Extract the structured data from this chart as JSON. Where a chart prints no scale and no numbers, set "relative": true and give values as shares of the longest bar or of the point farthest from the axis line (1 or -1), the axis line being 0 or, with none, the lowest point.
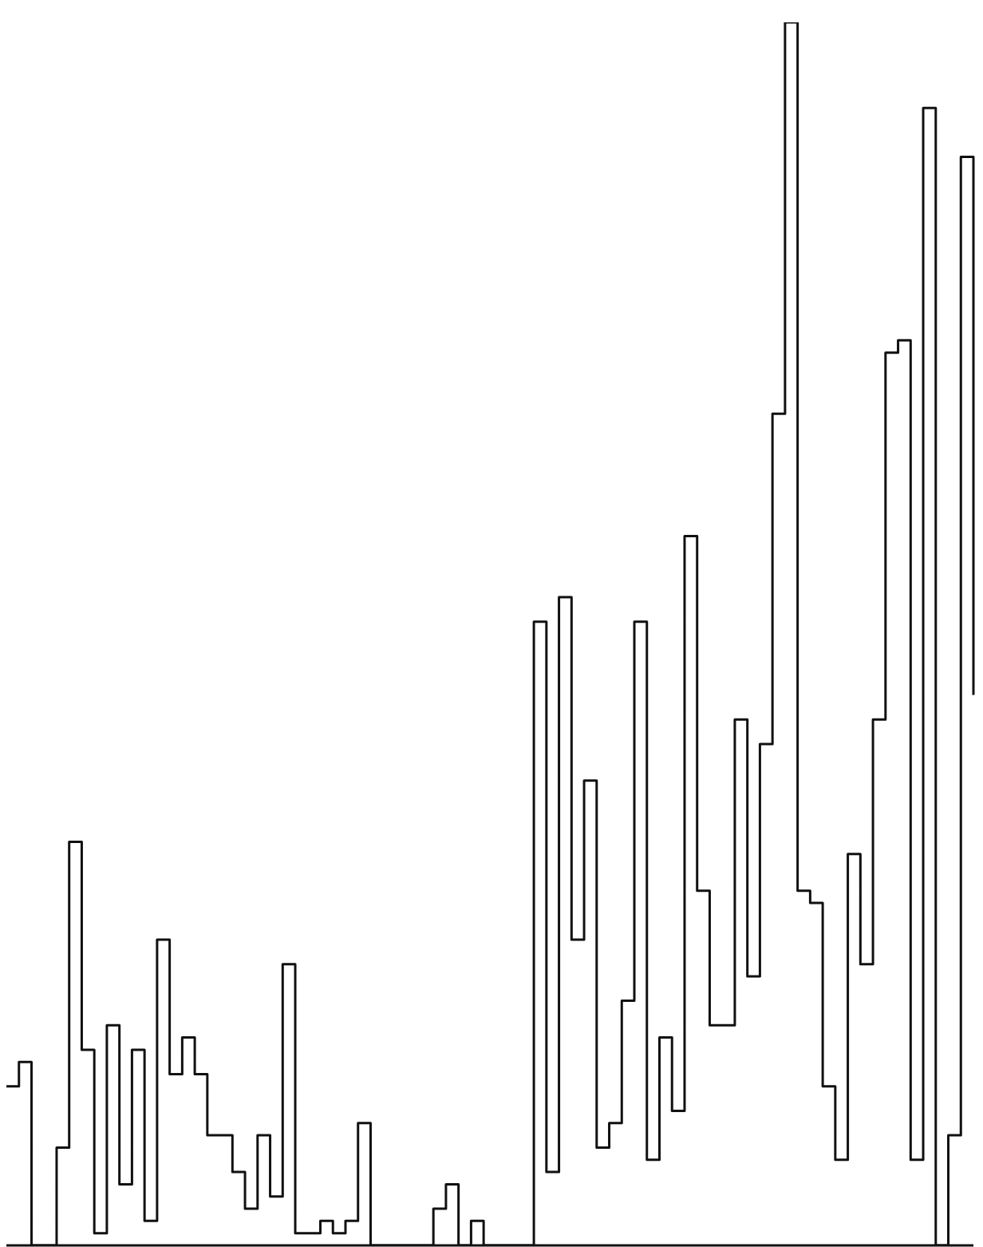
{
  "chart_data": {
    "type": "step",
    "relative": true,
    "color": "#111111",
    "categories": [
      null,
      null,
      null,
      null,
      null,
      null,
      null,
      null,
      null,
      null,
      null,
      null,
      null,
      null,
      null,
      null,
      null,
      null,
      null,
      null,
      null,
      null,
      null,
      null,
      null,
      null,
      null,
      null,
      null,
      null,
      null,
      null,
      null,
      null,
      null,
      null,
      null,
      null,
      null,
      null,
      null,
      null,
      null,
      null,
      null,
      null,
      null,
      null,
      null,
      null,
      null,
      null,
      null,
      null,
      null,
      null,
      null,
      null,
      null,
      null,
      null,
      null,
      null,
      null,
      null,
      null,
      null,
      null,
      null,
      null,
      null,
      null,
      null,
      null,
      null,
      null,
      null,
      null
    ],
    "values": [
      0.13,
      0.15,
      0,
      0,
      0.08,
      0.33,
      0.16,
      0.01,
      0.18,
      0.05,
      0.16,
      0.02,
      0.25,
      0.14,
      0.17,
      0.14,
      0.09,
      0.09,
      0.06,
      0.03,
      0.09,
      0.04,
      0.23,
      0.01,
      0.01,
      0.02,
      0.01,
      0.02,
      0.1,
      0,
      0,
      0,
      0,
      0,
      0.03,
      0.05,
      0,
      0.02,
      0,
      0,
      0,
      0,
      0.51,
      0.06,
      0.53,
      0.25,
      0.38,
      0.08,
      0.1,
      0.2,
      0.51,
      0.07,
      0.17,
      0.11,
      0.58,
      0.29,
      0.18,
      0.18,
      0.43,
      0.22,
      0.41,
      0.68,
      1.0,
      0.29,
      0.28,
      0.13,
      0.07,
      0.32,
      0.23,
      0.43,
      0.73,
      0.74,
      0.07,
      0.93,
      0,
      0.09,
      0.89,
      0.45
    ]
  }
}
